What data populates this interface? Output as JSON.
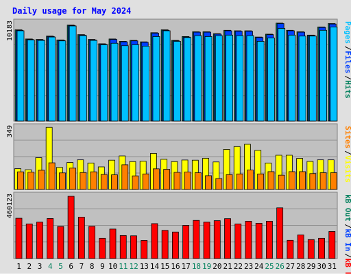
{
  "colors": {
    "background": "#e0e0e0",
    "plot_bg": "#c0c0c0",
    "title": "#0000ff",
    "axis_text": "#000000",
    "weekend_text": "#00805c",
    "hits": "#00805c",
    "files": "#0040ff",
    "pages": "#00c0ff",
    "visits": "#ffff00",
    "sites": "#ff8000",
    "kb_in": "#ff0000",
    "kb_out": "#00805c",
    "kb_f": "#ff0000"
  },
  "chart_data": [
    {
      "type": "bar",
      "title": "Daily usage for May 2024",
      "categories": [
        "1",
        "2",
        "3",
        "4",
        "5",
        "6",
        "7",
        "8",
        "9",
        "10",
        "11",
        "12",
        "13",
        "14",
        "15",
        "16",
        "17",
        "18",
        "19",
        "20",
        "21",
        "22",
        "23",
        "24",
        "25",
        "26",
        "27",
        "28",
        "29",
        "30",
        "31"
      ],
      "weekend_categories": [
        "4",
        "5",
        "11",
        "12",
        "18",
        "19",
        "25",
        "26"
      ],
      "y_max_label": "10183",
      "ylim": [
        0,
        10183
      ],
      "legend": [
        {
          "label": "Hits",
          "color": "#00805c"
        },
        {
          "label": "Files",
          "color": "#0040ff"
        },
        {
          "label": "Pages",
          "color": "#00c0ff"
        }
      ],
      "legend_separator": "/",
      "series": [
        {
          "name": "Hits",
          "values": [
            9500,
            8550,
            8500,
            8850,
            8450,
            10000,
            9000,
            8500,
            8050,
            8550,
            8300,
            8400,
            8250,
            9200,
            9500,
            8400,
            8800,
            9300,
            9300,
            9100,
            9450,
            9400,
            9400,
            8750,
            9050,
            10200,
            9450,
            9300,
            8950,
            9800,
            10150
          ]
        },
        {
          "name": "Files",
          "values": [
            9450,
            8500,
            8450,
            8800,
            8400,
            9950,
            8950,
            8450,
            8000,
            8500,
            8250,
            8350,
            8200,
            9150,
            9450,
            8350,
            8750,
            9250,
            9250,
            9050,
            9400,
            9350,
            9350,
            8700,
            9000,
            10150,
            9400,
            9250,
            8900,
            9750,
            10100
          ]
        },
        {
          "name": "Pages",
          "values": [
            9400,
            8450,
            8400,
            8750,
            8350,
            9900,
            8900,
            8400,
            7950,
            8100,
            7850,
            7950,
            7800,
            8800,
            9400,
            8300,
            8700,
            8900,
            8800,
            8900,
            8950,
            8900,
            8900,
            8300,
            8650,
            9650,
            8950,
            8850,
            8850,
            9450,
            9800
          ]
        }
      ]
    },
    {
      "type": "bar",
      "y_max_label": "349",
      "ylim": [
        0,
        349
      ],
      "categories": [
        "1",
        "2",
        "3",
        "4",
        "5",
        "6",
        "7",
        "8",
        "9",
        "10",
        "11",
        "12",
        "13",
        "14",
        "15",
        "16",
        "17",
        "18",
        "19",
        "20",
        "21",
        "22",
        "23",
        "24",
        "25",
        "26",
        "27",
        "28",
        "29",
        "30",
        "31"
      ],
      "legend": [
        {
          "label": "Visits",
          "color": "#ffff00"
        },
        {
          "label": "Sites",
          "color": "#ff8000"
        }
      ],
      "legend_separator": "/",
      "series": [
        {
          "name": "Visits",
          "values": [
            118,
            112,
            180,
            352,
            125,
            153,
            168,
            150,
            128,
            166,
            190,
            158,
            160,
            204,
            171,
            158,
            167,
            166,
            177,
            156,
            227,
            243,
            256,
            222,
            150,
            194,
            194,
            176,
            159,
            168,
            168
          ]
        },
        {
          "name": "Sites",
          "values": [
            100,
            98,
            109,
            151,
            94,
            121,
            96,
            100,
            85,
            83,
            140,
            77,
            88,
            117,
            114,
            97,
            99,
            95,
            78,
            62,
            84,
            88,
            110,
            88,
            101,
            81,
            101,
            101,
            90,
            95,
            95
          ]
        }
      ]
    },
    {
      "type": "bar",
      "y_max_label": "460123",
      "ylim": [
        0,
        460123
      ],
      "categories": [
        "1",
        "2",
        "3",
        "4",
        "5",
        "6",
        "7",
        "8",
        "9",
        "10",
        "11",
        "12",
        "13",
        "14",
        "15",
        "16",
        "17",
        "18",
        "19",
        "20",
        "21",
        "22",
        "23",
        "24",
        "25",
        "26",
        "27",
        "28",
        "29",
        "30",
        "31"
      ],
      "legend": [
        {
          "label": "kB F",
          "color": "#ff0000"
        },
        {
          "label": "kB In",
          "color": "#0040ff"
        },
        {
          "label": "kB Out",
          "color": "#00805c"
        }
      ],
      "legend_separator": "/",
      "series": [
        {
          "name": "kB F",
          "values": [
            298000,
            256000,
            269000,
            296000,
            237000,
            460123,
            306000,
            238000,
            150000,
            218000,
            170000,
            168000,
            134000,
            258000,
            208000,
            196000,
            245000,
            282000,
            269000,
            280000,
            295000,
            256000,
            276000,
            261000,
            276000,
            375000,
            135000,
            175000,
            140000,
            150000,
            200000
          ]
        }
      ]
    }
  ]
}
